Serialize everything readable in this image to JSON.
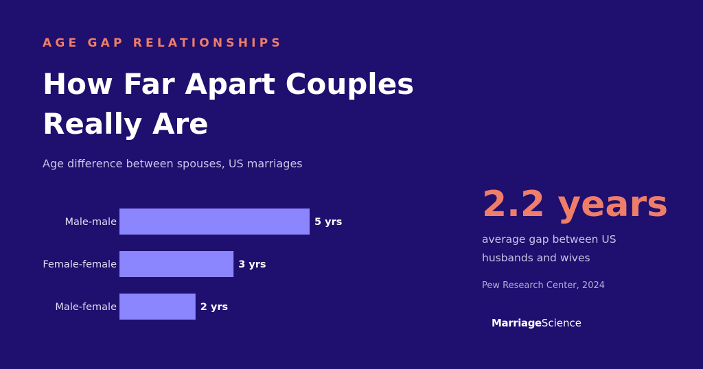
{
  "header": {
    "eyebrow": "AGE GAP RELATIONSHIPS",
    "title": "How Far Apart Couples Really Are",
    "subtitle": "Age difference between spouses, US marriages"
  },
  "chart_data": {
    "type": "bar",
    "orientation": "horizontal",
    "categories": [
      "Male-male",
      "Female-female",
      "Male-female"
    ],
    "values": [
      5,
      3,
      2
    ],
    "data_labels": [
      "5 yrs",
      "3 yrs",
      "2 yrs"
    ],
    "unit": "yrs",
    "xlim": [
      0,
      5
    ],
    "grid": false,
    "bar_color": "#8b86fd"
  },
  "stat": {
    "value": "2.2 years",
    "description": "average gap between US husbands and wives",
    "source": "Pew Research Center, 2024"
  },
  "brand": {
    "part1": "Marriage",
    "part2": "Science"
  },
  "colors": {
    "background": "#1f0f6e",
    "accent": "#ee7d69",
    "bar": "#8b86fd"
  }
}
